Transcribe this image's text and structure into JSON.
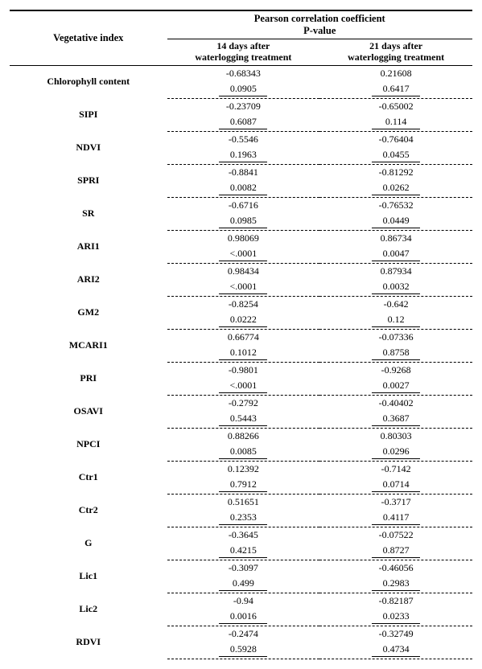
{
  "header": {
    "col1": "Vegetative index",
    "col2_line1": "Pearson     correlation  coefficient",
    "col2_line2": "P-value",
    "sub_a_line1": "14  days  after",
    "sub_a_line2": "waterlogging  treatment",
    "sub_b_line1": "21  days  after",
    "sub_b_line2": "waterlogging  treatment"
  },
  "rows": [
    {
      "name": "Chlorophyll content",
      "c14": "-0.68343",
      "p14": "0.0905",
      "c21": "0.21608",
      "p21": "0.6417"
    },
    {
      "name": "SIPI",
      "c14": "-0.23709",
      "p14": "0.6087",
      "c21": "-0.65002",
      "p21": "0.114"
    },
    {
      "name": "NDVI",
      "c14": "-0.5546",
      "p14": "0.1963",
      "c21": "-0.76404",
      "p21": "0.0455"
    },
    {
      "name": "SPRI",
      "c14": "-0.8841",
      "p14": "0.0082",
      "c21": "-0.81292",
      "p21": "0.0262"
    },
    {
      "name": "SR",
      "c14": "-0.6716",
      "p14": "0.0985",
      "c21": "-0.76532",
      "p21": "0.0449"
    },
    {
      "name": "ARI1",
      "c14": "0.98069",
      "p14": "<.0001",
      "c21": "0.86734",
      "p21": "0.0047"
    },
    {
      "name": "ARI2",
      "c14": "0.98434",
      "p14": "<.0001",
      "c21": "0.87934",
      "p21": "0.0032"
    },
    {
      "name": "GM2",
      "c14": "-0.8254",
      "p14": "0.0222",
      "c21": "-0.642",
      "p21": "0.12"
    },
    {
      "name": "MCARI1",
      "c14": "0.66774",
      "p14": "0.1012",
      "c21": "-0.07336",
      "p21": "0.8758"
    },
    {
      "name": "PRI",
      "c14": "-0.9801",
      "p14": "<.0001",
      "c21": "-0.9268",
      "p21": "0.0027"
    },
    {
      "name": "OSAVI",
      "c14": "-0.2792",
      "p14": "0.5443",
      "c21": "-0.40402",
      "p21": "0.3687"
    },
    {
      "name": "NPCI",
      "c14": "0.88266",
      "p14": "0.0085",
      "c21": "0.80303",
      "p21": "0.0296"
    },
    {
      "name": "Ctr1",
      "c14": "0.12392",
      "p14": "0.7912",
      "c21": "-0.7142",
      "p21": "0.0714"
    },
    {
      "name": "Ctr2",
      "c14": "0.51651",
      "p14": "0.2353",
      "c21": "-0.3717",
      "p21": "0.4117"
    },
    {
      "name": "G",
      "c14": "-0.3645",
      "p14": "0.4215",
      "c21": "-0.07522",
      "p21": "0.8727"
    },
    {
      "name": "Lic1",
      "c14": "-0.3097",
      "p14": "0.499",
      "c21": "-0.46056",
      "p21": "0.2983"
    },
    {
      "name": "Lic2",
      "c14": "-0.94",
      "p14": "0.0016",
      "c21": "-0.82187",
      "p21": "0.0233"
    },
    {
      "name": "RDVI",
      "c14": "-0.2474",
      "p14": "0.5928",
      "c21": "-0.32749",
      "p21": "0.4734"
    }
  ]
}
